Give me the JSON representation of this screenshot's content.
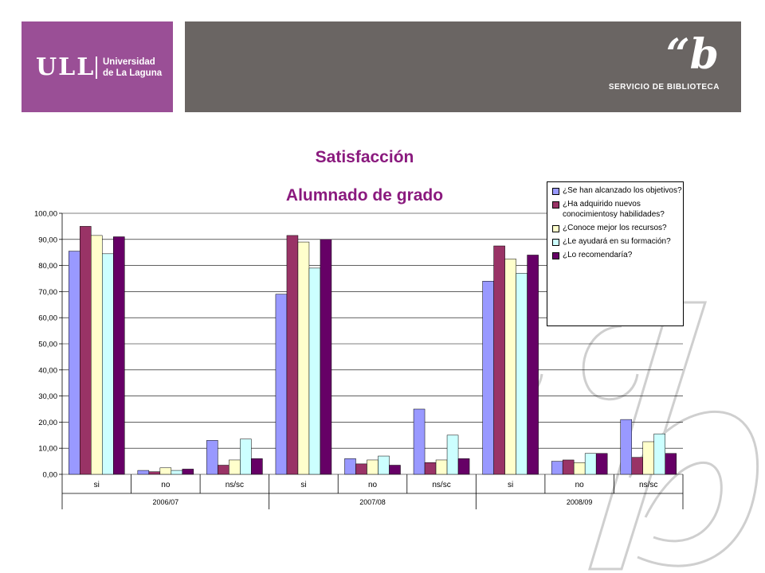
{
  "header": {
    "university_mark": "ULL",
    "university_name_line1": "Universidad",
    "university_name_line2": "de La Laguna",
    "library_logo": "“b",
    "library_name": "SERVICIO DE BIBLIOTECA"
  },
  "colors": {
    "purple_band": "#9a4f96",
    "gray_band": "#6a6563",
    "title": "#8a1a7e",
    "watermark": "#cfcfcf"
  },
  "chart_data": {
    "type": "bar",
    "title": "Satisfacción",
    "subtitle": "Alumnado de grado",
    "xlabel": "",
    "ylabel": "",
    "ylim": [
      0,
      100
    ],
    "yticks": [
      "0,00",
      "10,00",
      "20,00",
      "30,00",
      "40,00",
      "50,00",
      "60,00",
      "70,00",
      "80,00",
      "90,00",
      "100,00"
    ],
    "grid": true,
    "legend_position": "top-right",
    "groups": [
      {
        "label": "2006/07",
        "categories": [
          "si",
          "no",
          "ns/sc"
        ]
      },
      {
        "label": "2007/08",
        "categories": [
          "si",
          "no",
          "ns/sc"
        ]
      },
      {
        "label": "2008/09",
        "categories": [
          "si",
          "no",
          "ns/sc"
        ]
      }
    ],
    "series": [
      {
        "name": "¿Se han alcanzado los objetivos?",
        "color": "#9999ff",
        "values": [
          85.5,
          1.5,
          13,
          69,
          6,
          25,
          74,
          5,
          21
        ]
      },
      {
        "name": "¿Ha adquirido nuevos conocimientosy habilidades?",
        "color": "#993366",
        "values": [
          95,
          1,
          3.5,
          91.5,
          4,
          4.5,
          87.5,
          5.5,
          6.5
        ]
      },
      {
        "name": "¿Conoce mejor los recursos?",
        "color": "#ffffcc",
        "values": [
          91.5,
          2.5,
          5.5,
          89,
          5.5,
          5.5,
          82.5,
          4.5,
          12.5
        ]
      },
      {
        "name": "¿Le ayudará en su formación?",
        "color": "#ccffff",
        "values": [
          84.5,
          1.5,
          13.5,
          79,
          7,
          15,
          77,
          8,
          15.5
        ]
      },
      {
        "name": "¿Lo recomendaría?",
        "color": "#660066",
        "values": [
          91,
          2,
          6,
          90,
          3.5,
          6,
          84,
          8,
          8
        ]
      }
    ]
  }
}
